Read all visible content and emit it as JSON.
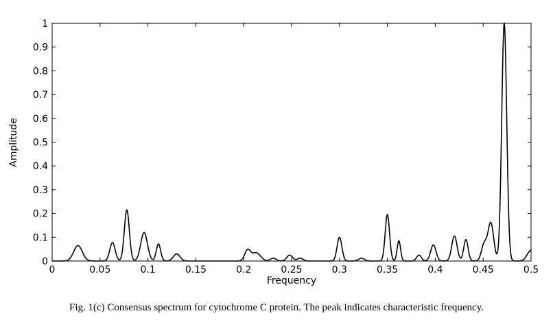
{
  "caption": "Fig. 1(c)  Consensus spectrum for cytochrome C protein. The peak indicates characteristic frequency.",
  "chart_data": {
    "type": "line",
    "title": "",
    "xlabel": "Frequency",
    "ylabel": "Amplitude",
    "xlim": [
      0,
      0.5
    ],
    "ylim": [
      0,
      1
    ],
    "xticks": [
      0,
      0.05,
      0.1,
      0.15,
      0.2,
      0.25,
      0.3,
      0.35,
      0.4,
      0.45,
      0.5
    ],
    "xtick_labels": [
      "0",
      "0.05",
      "0.1",
      "0.15",
      "0.2",
      "0.25",
      "0.3",
      "0.35",
      "0.4",
      "0.45",
      "0.5"
    ],
    "yticks": [
      0,
      0.1,
      0.2,
      0.3,
      0.4,
      0.5,
      0.6,
      0.7,
      0.8,
      0.9,
      1
    ],
    "ytick_labels": [
      "0",
      "0.1",
      "0.2",
      "0.3",
      "0.4",
      "0.5",
      "0.6",
      "0.7",
      "0.8",
      "0.9",
      "1"
    ],
    "grid": false,
    "line_color": "#000000",
    "peaks": [
      {
        "x": 0.027,
        "y": 0.065,
        "width": 0.0045
      },
      {
        "x": 0.063,
        "y": 0.078,
        "width": 0.0028
      },
      {
        "x": 0.078,
        "y": 0.215,
        "width": 0.0026
      },
      {
        "x": 0.096,
        "y": 0.12,
        "width": 0.0035
      },
      {
        "x": 0.111,
        "y": 0.072,
        "width": 0.0023
      },
      {
        "x": 0.13,
        "y": 0.03,
        "width": 0.0035
      },
      {
        "x": 0.204,
        "y": 0.045,
        "width": 0.003
      },
      {
        "x": 0.213,
        "y": 0.035,
        "width": 0.0045
      },
      {
        "x": 0.231,
        "y": 0.012,
        "width": 0.003
      },
      {
        "x": 0.248,
        "y": 0.025,
        "width": 0.003
      },
      {
        "x": 0.259,
        "y": 0.012,
        "width": 0.003
      },
      {
        "x": 0.3,
        "y": 0.1,
        "width": 0.0025
      },
      {
        "x": 0.323,
        "y": 0.012,
        "width": 0.003
      },
      {
        "x": 0.35,
        "y": 0.195,
        "width": 0.0023
      },
      {
        "x": 0.362,
        "y": 0.085,
        "width": 0.0018
      },
      {
        "x": 0.383,
        "y": 0.025,
        "width": 0.0025
      },
      {
        "x": 0.398,
        "y": 0.068,
        "width": 0.0028
      },
      {
        "x": 0.42,
        "y": 0.105,
        "width": 0.0028
      },
      {
        "x": 0.432,
        "y": 0.09,
        "width": 0.0023
      },
      {
        "x": 0.451,
        "y": 0.07,
        "width": 0.0028
      },
      {
        "x": 0.458,
        "y": 0.16,
        "width": 0.003
      },
      {
        "x": 0.472,
        "y": 1.0,
        "width": 0.0026
      },
      {
        "x": 0.5,
        "y": 0.045,
        "width": 0.004
      }
    ]
  }
}
